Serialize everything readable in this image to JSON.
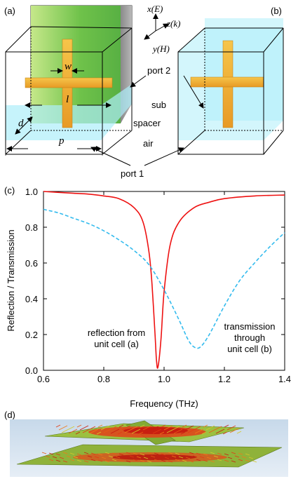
{
  "panels": {
    "a": "(a)",
    "b": "(b)",
    "c": "(c)",
    "d": "(d)"
  },
  "axes_triad": {
    "x": "x(E)",
    "z": "z(k)",
    "y": "y(H)"
  },
  "dims": {
    "w": "w",
    "l": "l",
    "d": "d",
    "p": "p"
  },
  "labels": {
    "port2": "port 2",
    "port1": "port 1",
    "sub": "sub",
    "spacer": "spacer",
    "air": "air"
  },
  "colors": {
    "reflection": "#ee1111",
    "transmission": "#33bbee",
    "sub_block": "#77c94a",
    "cell": "#aeeefa",
    "cross": "#f0b030"
  },
  "chart_data": {
    "type": "line",
    "xlabel": "Frequency (THz)",
    "ylabel": "Reflection / Transmission",
    "xlim": [
      0.6,
      1.4
    ],
    "ylim": [
      0.0,
      1.0
    ],
    "xticks": [
      "0.6",
      "0.8",
      "1.0",
      "1.2",
      "1.4"
    ],
    "yticks": [
      "0.0",
      "0.2",
      "0.4",
      "0.6",
      "0.8",
      "1.0"
    ],
    "series": [
      {
        "style": "solid",
        "x": [
          0.6,
          0.65,
          0.7,
          0.75,
          0.8,
          0.85,
          0.9,
          0.93,
          0.95,
          0.96,
          0.97,
          0.975,
          0.98,
          0.99,
          1.0,
          1.02,
          1.05,
          1.1,
          1.15,
          1.2,
          1.3,
          1.4
        ],
        "y": [
          1.0,
          0.995,
          0.99,
          0.985,
          0.975,
          0.96,
          0.91,
          0.83,
          0.66,
          0.48,
          0.2,
          0.05,
          0.02,
          0.18,
          0.44,
          0.7,
          0.83,
          0.91,
          0.94,
          0.96,
          0.975,
          0.98
        ]
      },
      {
        "style": "dashed",
        "x": [
          0.6,
          0.65,
          0.7,
          0.75,
          0.8,
          0.85,
          0.9,
          0.95,
          1.0,
          1.05,
          1.08,
          1.1,
          1.12,
          1.15,
          1.2,
          1.25,
          1.3,
          1.35,
          1.4
        ],
        "y": [
          0.9,
          0.88,
          0.85,
          0.82,
          0.78,
          0.73,
          0.67,
          0.59,
          0.45,
          0.28,
          0.17,
          0.13,
          0.13,
          0.2,
          0.36,
          0.5,
          0.6,
          0.69,
          0.77
        ]
      }
    ],
    "annotations": [
      {
        "lines": [
          "reflection from",
          "unit cell (a)"
        ]
      },
      {
        "lines": [
          "transmission",
          "through",
          "unit cell (b)"
        ]
      }
    ]
  }
}
